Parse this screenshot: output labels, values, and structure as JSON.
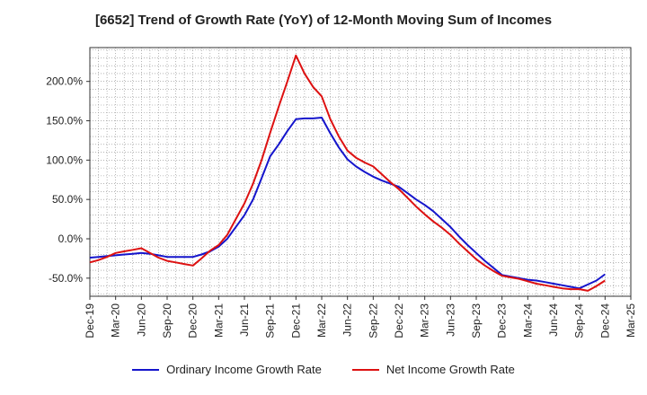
{
  "chart_data": {
    "type": "line",
    "title": "[6652]  Trend of Growth Rate (YoY) of 12-Month Moving Sum of Incomes",
    "x": [
      "Dec-19",
      "Jan-20",
      "Feb-20",
      "Mar-20",
      "Apr-20",
      "May-20",
      "Jun-20",
      "Jul-20",
      "Aug-20",
      "Sep-20",
      "Oct-20",
      "Nov-20",
      "Dec-20",
      "Jan-21",
      "Feb-21",
      "Mar-21",
      "Apr-21",
      "May-21",
      "Jun-21",
      "Jul-21",
      "Aug-21",
      "Sep-21",
      "Oct-21",
      "Nov-21",
      "Dec-21",
      "Jan-22",
      "Feb-22",
      "Mar-22",
      "Apr-22",
      "May-22",
      "Jun-22",
      "Jul-22",
      "Aug-22",
      "Sep-22",
      "Oct-22",
      "Nov-22",
      "Dec-22",
      "Jan-23",
      "Feb-23",
      "Mar-23",
      "Apr-23",
      "May-23",
      "Jun-23",
      "Jul-23",
      "Aug-23",
      "Sep-23",
      "Oct-23",
      "Nov-23",
      "Dec-23",
      "Jan-24",
      "Feb-24",
      "Mar-24",
      "Apr-24",
      "May-24",
      "Jun-24",
      "Jul-24",
      "Aug-24",
      "Sep-24",
      "Oct-24",
      "Nov-24",
      "Dec-24"
    ],
    "xticks": [
      "Dec-19",
      "Mar-20",
      "Jun-20",
      "Sep-20",
      "Dec-20",
      "Mar-21",
      "Jun-21",
      "Sep-21",
      "Dec-21",
      "Mar-22",
      "Jun-22",
      "Sep-22",
      "Dec-22",
      "Mar-23",
      "Jun-23",
      "Sep-23",
      "Dec-23",
      "Mar-24",
      "Jun-24",
      "Sep-24",
      "Dec-24",
      "Mar-25"
    ],
    "xlim": [
      "Dec-19",
      "Mar-25"
    ],
    "yticks": [
      -50,
      0,
      50,
      100,
      150,
      200
    ],
    "ytick_labels": [
      "-50.0%",
      "0.0%",
      "50.0%",
      "100.0%",
      "150.0%",
      "200.0%"
    ],
    "ylim": [
      -73,
      243
    ],
    "grid": true,
    "legend_position": "bottom-center",
    "series": [
      {
        "name": "Ordinary Income Growth Rate",
        "color": "#1515cc",
        "values": [
          -24,
          -23,
          -22,
          -21,
          -20,
          -19,
          -18,
          -19,
          -21,
          -23,
          -23,
          -23,
          -23,
          -20,
          -16,
          -10,
          0,
          15,
          30,
          50,
          77,
          105,
          120,
          137,
          152,
          153,
          153,
          154,
          134,
          116,
          101,
          92,
          85,
          79,
          74,
          70,
          66,
          58,
          50,
          43,
          35,
          25,
          15,
          3,
          -8,
          -18,
          -28,
          -37,
          -46,
          -48,
          -50,
          -52,
          -53,
          -55,
          -57,
          -59,
          -61,
          -63,
          -58,
          -53,
          -45
        ]
      },
      {
        "name": "Net Income Growth Rate",
        "color": "#dd1111",
        "values": [
          -30,
          -27,
          -23,
          -18,
          -16,
          -14,
          -12,
          -18,
          -24,
          -28,
          -30,
          -32,
          -34,
          -25,
          -15,
          -8,
          5,
          25,
          45,
          70,
          100,
          135,
          168,
          200,
          233,
          210,
          193,
          181,
          152,
          130,
          112,
          103,
          97,
          92,
          82,
          72,
          63,
          52,
          41,
          31,
          22,
          14,
          5,
          -6,
          -16,
          -26,
          -34,
          -41,
          -47,
          -49,
          -51,
          -54,
          -57,
          -59,
          -61,
          -63,
          -64,
          -64,
          -66,
          -60,
          -53
        ]
      }
    ]
  }
}
